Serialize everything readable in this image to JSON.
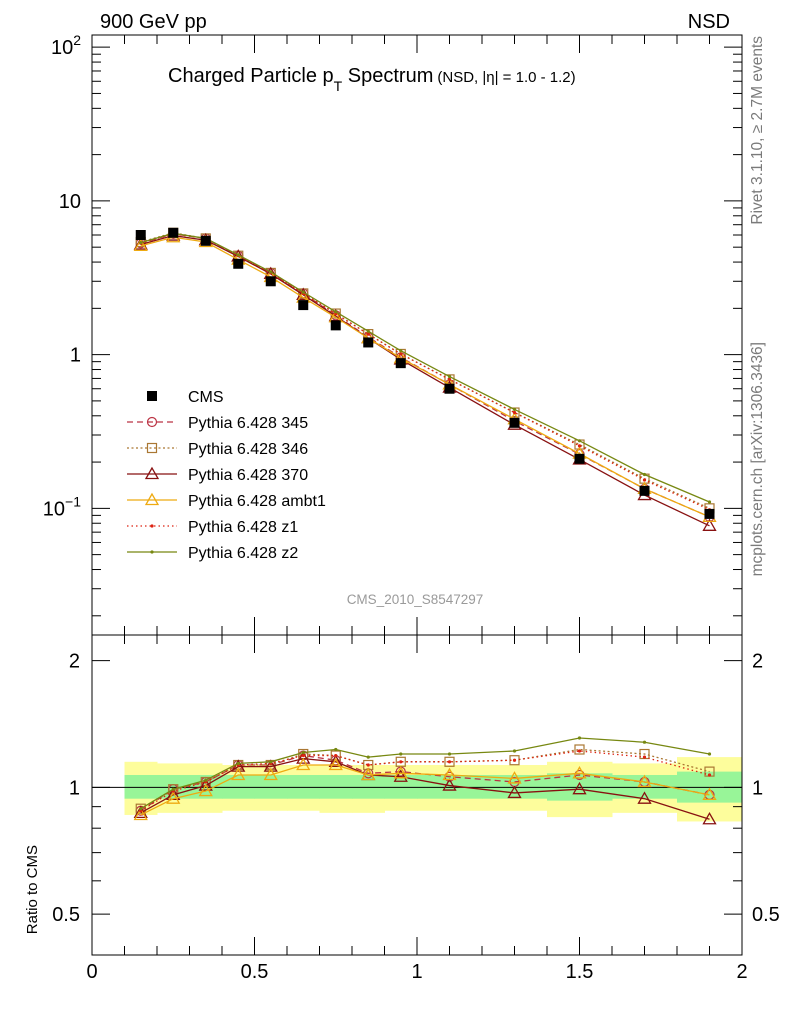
{
  "header": {
    "left": "900 GeV pp",
    "right": "NSD"
  },
  "side_labels": {
    "rivet": "Rivet 3.1.10, ≥ 2.7M events",
    "source": "mcplots.cern.ch [arXiv:1306.3436]"
  },
  "watermark": "CMS_2010_S8547297",
  "chart_data": {
    "type": "line",
    "title": {
      "main": "Charged Particle p",
      "sub": "T",
      "rest": " Spectrum",
      "extra": "(NSD, |η| = 1.0 - 1.2)"
    },
    "x_axis": {
      "range": [
        0,
        2
      ],
      "ticks": [
        "0",
        "0.5",
        "1",
        "1.5",
        "2"
      ]
    },
    "y_axis_main": {
      "scale": "log",
      "range": [
        0.015,
        120
      ],
      "ticks": [
        {
          "base": "10",
          "exp": "−1",
          "value": 0.1
        },
        {
          "base": "1",
          "exp": "",
          "value": 1
        },
        {
          "base": "10",
          "exp": "",
          "value": 10
        },
        {
          "base": "10",
          "exp": "2",
          "value": 100
        }
      ]
    },
    "y_axis_ratio": {
      "label": "Ratio to CMS",
      "scale": "log",
      "range": [
        0.4,
        2.3
      ],
      "ticks": [
        "0.5",
        "1",
        "2"
      ]
    },
    "x": [
      0.15,
      0.25,
      0.35,
      0.45,
      0.55,
      0.65,
      0.75,
      0.85,
      0.95,
      1.1,
      1.3,
      1.5,
      1.7,
      1.9
    ],
    "data": {
      "name": "CMS",
      "values": [
        6.0,
        6.2,
        5.5,
        3.9,
        3.0,
        2.1,
        1.55,
        1.2,
        0.88,
        0.6,
        0.36,
        0.21,
        0.13,
        0.092
      ],
      "color": "#000000"
    },
    "uncertainty_bands": {
      "bins": [
        0.1,
        0.2,
        0.3,
        0.4,
        0.5,
        0.6,
        0.7,
        0.8,
        0.9,
        1.0,
        1.2,
        1.4,
        1.6,
        1.8,
        2.0
      ],
      "inner": [
        [
          0.94,
          1.07
        ],
        [
          0.94,
          1.07
        ],
        [
          0.94,
          1.07
        ],
        [
          0.94,
          1.07
        ],
        [
          0.94,
          1.07
        ],
        [
          0.94,
          1.07
        ],
        [
          0.94,
          1.07
        ],
        [
          0.94,
          1.07
        ],
        [
          0.94,
          1.07
        ],
        [
          0.94,
          1.07
        ],
        [
          0.94,
          1.07
        ],
        [
          0.93,
          1.08
        ],
        [
          0.94,
          1.07
        ],
        [
          0.92,
          1.09
        ]
      ],
      "outer": [
        [
          0.86,
          1.15
        ],
        [
          0.87,
          1.14
        ],
        [
          0.87,
          1.14
        ],
        [
          0.88,
          1.13
        ],
        [
          0.88,
          1.13
        ],
        [
          0.88,
          1.13
        ],
        [
          0.87,
          1.13
        ],
        [
          0.87,
          1.13
        ],
        [
          0.88,
          1.13
        ],
        [
          0.88,
          1.13
        ],
        [
          0.88,
          1.13
        ],
        [
          0.85,
          1.15
        ],
        [
          0.87,
          1.14
        ],
        [
          0.83,
          1.18
        ]
      ],
      "inner_color": "#98f598",
      "outer_color": "#fdfd9c"
    },
    "series": [
      {
        "name": "Pythia 6.428 345",
        "color": "#bb3344",
        "dash": "6,4",
        "marker": "circle",
        "ratio": [
          0.88,
          0.99,
          1.03,
          1.13,
          1.13,
          1.19,
          1.16,
          1.08,
          1.09,
          1.06,
          1.03,
          1.07,
          1.03,
          0.96
        ],
        "values": [
          5.3,
          6.1,
          5.7,
          4.4,
          3.4,
          2.5,
          1.8,
          1.3,
          0.96,
          0.64,
          0.37,
          0.225,
          0.134,
          0.088
        ]
      },
      {
        "name": "Pythia 6.428 346",
        "color": "#aa7733",
        "dash": "2,2.5",
        "marker": "square",
        "ratio": [
          0.89,
          0.99,
          1.03,
          1.13,
          1.13,
          1.2,
          1.19,
          1.13,
          1.15,
          1.15,
          1.16,
          1.23,
          1.2,
          1.09
        ],
        "values": [
          5.4,
          6.2,
          5.7,
          4.4,
          3.4,
          2.5,
          1.85,
          1.36,
          1.01,
          0.69,
          0.42,
          0.26,
          0.156,
          0.1
        ]
      },
      {
        "name": "Pythia 6.428 370",
        "color": "#881111",
        "dash": "",
        "marker": "triangle",
        "ratio": [
          0.87,
          0.96,
          1.01,
          1.12,
          1.12,
          1.17,
          1.15,
          1.07,
          1.06,
          1.01,
          0.97,
          0.99,
          0.94,
          0.84
        ],
        "values": [
          5.2,
          5.95,
          5.55,
          4.35,
          3.35,
          2.45,
          1.78,
          1.28,
          0.93,
          0.61,
          0.35,
          0.208,
          0.122,
          0.077
        ]
      },
      {
        "name": "Pythia 6.428 ambt1",
        "color": "#eeaa11",
        "dash": "",
        "marker": "triangle",
        "ratio": [
          0.86,
          0.94,
          0.98,
          1.07,
          1.07,
          1.13,
          1.13,
          1.07,
          1.08,
          1.07,
          1.05,
          1.08,
          1.03,
          0.96
        ],
        "values": [
          5.1,
          5.8,
          5.4,
          4.15,
          3.2,
          2.35,
          1.75,
          1.28,
          0.95,
          0.64,
          0.38,
          0.227,
          0.134,
          0.088
        ]
      },
      {
        "name": "Pythia 6.428 z1",
        "color": "#dd2211",
        "dash": "1.5,3",
        "marker": "dot",
        "ratio": [
          0.88,
          0.98,
          1.03,
          1.13,
          1.14,
          1.19,
          1.19,
          1.13,
          1.15,
          1.15,
          1.16,
          1.22,
          1.18,
          1.07
        ],
        "values": [
          5.3,
          6.1,
          5.7,
          4.4,
          3.4,
          2.5,
          1.84,
          1.36,
          1.01,
          0.69,
          0.42,
          0.255,
          0.153,
          0.098
        ]
      },
      {
        "name": "Pythia 6.428 z2",
        "color": "#778811",
        "dash": "",
        "marker": "dot",
        "ratio": [
          0.89,
          0.99,
          1.04,
          1.14,
          1.15,
          1.21,
          1.23,
          1.18,
          1.2,
          1.2,
          1.22,
          1.31,
          1.28,
          1.2
        ],
        "values": [
          5.35,
          6.15,
          5.7,
          4.45,
          3.45,
          2.55,
          1.9,
          1.42,
          1.06,
          0.72,
          0.44,
          0.275,
          0.166,
          0.11
        ]
      }
    ]
  }
}
